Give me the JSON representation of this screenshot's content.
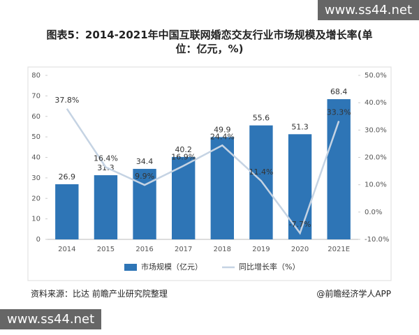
{
  "watermark_top": "www.ss44.net",
  "watermark_bottom": "www.ss44.net",
  "source": "资料来源：比达 前瞻产业研究院整理",
  "credit": "@前瞻经济学人APP",
  "chart_data": {
    "type": "bar",
    "title": "图表5：2014-2021年中国互联网婚恋交友行业市场规模及增长率(单位：亿元，%)",
    "categories": [
      "2014",
      "2015",
      "2016",
      "2017",
      "2018",
      "2019",
      "2020",
      "2021E"
    ],
    "series": [
      {
        "name": "市场规模（亿元）",
        "type": "bar",
        "color": "#2e75b6",
        "values": [
          26.9,
          31.3,
          34.4,
          40.2,
          49.9,
          55.6,
          51.3,
          68.4
        ]
      },
      {
        "name": "同比增长率（%）",
        "type": "line",
        "axis": "y2",
        "color": "#c5d3e3",
        "values": [
          37.8,
          16.4,
          9.9,
          16.9,
          24.4,
          11.4,
          -7.7,
          33.3
        ],
        "value_labels": [
          "37.8%",
          "16.4%",
          "9.9%",
          "16.9%",
          "24.4%",
          "11.4%",
          "-7.7%",
          "33.3%"
        ]
      }
    ],
    "ylim": [
      0,
      80
    ],
    "yticks": [
      0,
      10,
      20,
      30,
      40,
      50,
      60,
      70,
      80
    ],
    "y2lim": [
      -10,
      50
    ],
    "y2ticks": [
      {
        "value": -10,
        "label": "-10.0%"
      },
      {
        "value": 0,
        "label": "0.0%"
      },
      {
        "value": 10,
        "label": "10.0%"
      },
      {
        "value": 20,
        "label": "20.0%"
      },
      {
        "value": 30,
        "label": "30.0%"
      },
      {
        "value": 40,
        "label": "40.0%"
      },
      {
        "value": 50,
        "label": "50.0%"
      }
    ],
    "legend": "bottom"
  }
}
